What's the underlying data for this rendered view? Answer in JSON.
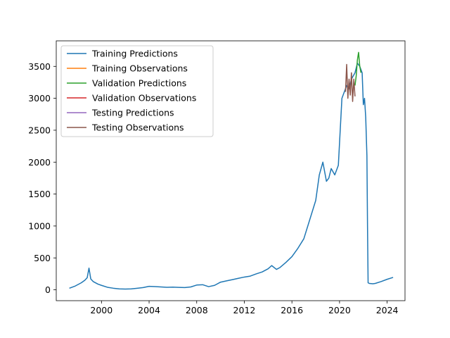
{
  "chart_data": {
    "type": "line",
    "title": "",
    "xlabel": "",
    "ylabel": "",
    "xlim": [
      1996.2,
      2025.5
    ],
    "ylim": [
      -170,
      3900
    ],
    "x_ticks": [
      2000,
      2004,
      2008,
      2012,
      2016,
      2020,
      2024
    ],
    "y_ticks": [
      0,
      500,
      1000,
      1500,
      2000,
      2500,
      3000,
      3500
    ],
    "grid": false,
    "legend_position": "upper-left",
    "series": [
      {
        "name": "Training Predictions",
        "color": "#1f77b4",
        "x": [
          1997.3,
          1997.8,
          1998.3,
          1998.6,
          1998.8,
          1998.95,
          1999.1,
          1999.3,
          1999.7,
          2000.0,
          2000.5,
          2001.0,
          2001.5,
          2002.0,
          2002.5,
          2003.0,
          2003.5,
          2004.0,
          2004.5,
          2005.0,
          2005.5,
          2006.0,
          2006.5,
          2007.0,
          2007.5,
          2008.0,
          2008.5,
          2009.0,
          2009.5,
          2010.0,
          2010.5,
          2011.0,
          2011.5,
          2012.0,
          2012.5,
          2013.0,
          2013.5,
          2014.0,
          2014.3,
          2014.7,
          2015.0,
          2015.5,
          2016.0,
          2016.5,
          2017.0,
          2017.5,
          2018.0,
          2018.3,
          2018.6,
          2018.9,
          2019.1,
          2019.3,
          2019.6,
          2019.9,
          2020.0,
          2020.2,
          2020.4,
          2020.6,
          2020.8,
          2021.0,
          2021.3,
          2021.5,
          2021.7,
          2021.9,
          2022.0,
          2022.1,
          2022.2,
          2022.3,
          2022.35,
          2022.4,
          2022.5,
          2022.8,
          2023.0,
          2023.5,
          2024.0,
          2024.5
        ],
        "y": [
          25,
          60,
          110,
          150,
          190,
          340,
          170,
          130,
          90,
          70,
          40,
          25,
          15,
          12,
          15,
          25,
          35,
          55,
          50,
          45,
          40,
          42,
          38,
          35,
          45,
          75,
          80,
          50,
          70,
          120,
          140,
          160,
          180,
          200,
          215,
          250,
          280,
          330,
          380,
          320,
          350,
          430,
          520,
          650,
          800,
          1100,
          1400,
          1800,
          2000,
          1700,
          1750,
          1900,
          1800,
          1950,
          2300,
          3000,
          3100,
          3200,
          3150,
          3300,
          3400,
          3550,
          3500,
          3400,
          2900,
          3000,
          2700,
          2100,
          1000,
          110,
          100,
          95,
          100,
          130,
          165,
          195
        ]
      },
      {
        "name": "Training Observations",
        "color": "#ff7f0e",
        "x": [],
        "y": []
      },
      {
        "name": "Validation Predictions",
        "color": "#2ca02c",
        "x": [
          2021.3,
          2021.4,
          2021.5,
          2021.6,
          2021.7,
          2021.8
        ],
        "y": [
          3200,
          3350,
          3600,
          3720,
          3500,
          3400
        ]
      },
      {
        "name": "Validation Observations",
        "color": "#d62728",
        "x": [],
        "y": []
      },
      {
        "name": "Testing Predictions",
        "color": "#9467bd",
        "x": [],
        "y": []
      },
      {
        "name": "Testing Observations",
        "color": "#8c564b",
        "x": [
          2020.5,
          2020.6,
          2020.7,
          2020.8,
          2020.9,
          2021.0,
          2021.1,
          2021.2,
          2021.3
        ],
        "y": [
          3100,
          3530,
          3000,
          3300,
          3050,
          3400,
          2950,
          3300,
          3030
        ]
      }
    ]
  }
}
